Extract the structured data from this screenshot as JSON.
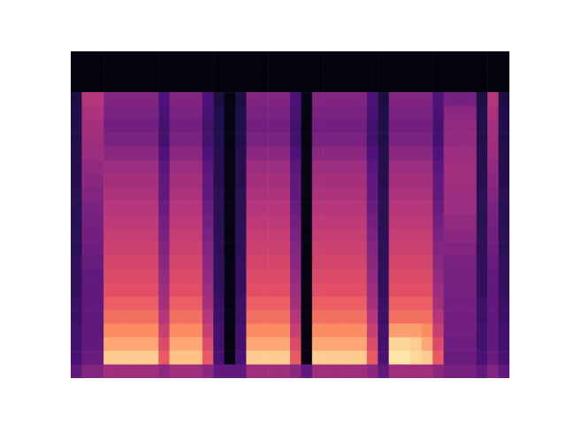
{
  "chart_data": {
    "type": "heatmap",
    "color": "magma",
    "tick_labels": false,
    "zlim": [
      0,
      100
    ],
    "values": [
      [
        2,
        2,
        2,
        2,
        2,
        2,
        2,
        2,
        2,
        2,
        2,
        2,
        2,
        2,
        2,
        2,
        2,
        2,
        2,
        2,
        2,
        2,
        2,
        2,
        2,
        2,
        2,
        2,
        2,
        2,
        2,
        2,
        2,
        2,
        2,
        2,
        2,
        2,
        2,
        2
      ],
      [
        2,
        2,
        2,
        2,
        2,
        2,
        2,
        2,
        2,
        2,
        2,
        2,
        2,
        2,
        2,
        2,
        2,
        2,
        2,
        2,
        2,
        2,
        2,
        2,
        2,
        2,
        2,
        2,
        2,
        2,
        2,
        2,
        2,
        2,
        2,
        2,
        2,
        2,
        2,
        2
      ],
      [
        2,
        2,
        2,
        2,
        2,
        2,
        2,
        2,
        2,
        2,
        2,
        2,
        2,
        2,
        2,
        2,
        2,
        2,
        2,
        2,
        2,
        2,
        2,
        2,
        2,
        2,
        2,
        2,
        2,
        2,
        2,
        2,
        2,
        2,
        2,
        2,
        2,
        2,
        2,
        2
      ],
      [
        12,
        50,
        50,
        38,
        38,
        38,
        38,
        38,
        25,
        38,
        38,
        38,
        25,
        12,
        3,
        12,
        38,
        38,
        38,
        38,
        25,
        3,
        38,
        38,
        38,
        38,
        38,
        25,
        12,
        38,
        38,
        38,
        38,
        25,
        35,
        35,
        35,
        12,
        50,
        12
      ],
      [
        14,
        48,
        48,
        36,
        36,
        36,
        36,
        36,
        24,
        36,
        36,
        36,
        24,
        14,
        3,
        14,
        36,
        36,
        36,
        36,
        24,
        3,
        36,
        36,
        36,
        36,
        36,
        24,
        14,
        36,
        36,
        36,
        36,
        24,
        40,
        40,
        40,
        14,
        48,
        14
      ],
      [
        14,
        46,
        46,
        34,
        34,
        34,
        34,
        34,
        22,
        34,
        34,
        34,
        22,
        14,
        3,
        14,
        34,
        34,
        34,
        34,
        22,
        3,
        34,
        34,
        34,
        34,
        34,
        22,
        14,
        34,
        34,
        34,
        34,
        22,
        42,
        42,
        42,
        14,
        46,
        14
      ],
      [
        14,
        45,
        45,
        36,
        36,
        36,
        36,
        36,
        22,
        36,
        36,
        36,
        22,
        14,
        3,
        14,
        36,
        36,
        36,
        36,
        22,
        3,
        36,
        36,
        36,
        36,
        36,
        22,
        14,
        36,
        36,
        36,
        36,
        22,
        42,
        42,
        42,
        14,
        45,
        14
      ],
      [
        15,
        44,
        44,
        40,
        40,
        40,
        40,
        40,
        25,
        40,
        40,
        40,
        25,
        15,
        3,
        15,
        40,
        40,
        40,
        40,
        25,
        3,
        40,
        40,
        40,
        40,
        40,
        25,
        15,
        40,
        40,
        40,
        40,
        25,
        44,
        44,
        44,
        15,
        44,
        15
      ],
      [
        15,
        42,
        42,
        44,
        44,
        44,
        44,
        44,
        28,
        44,
        44,
        44,
        28,
        15,
        3,
        15,
        44,
        44,
        44,
        44,
        28,
        3,
        44,
        44,
        44,
        44,
        44,
        28,
        15,
        44,
        44,
        44,
        44,
        28,
        45,
        45,
        45,
        15,
        42,
        15
      ],
      [
        15,
        40,
        40,
        46,
        46,
        46,
        46,
        46,
        30,
        46,
        46,
        46,
        30,
        15,
        3,
        15,
        46,
        46,
        46,
        46,
        30,
        3,
        46,
        46,
        46,
        46,
        46,
        30,
        15,
        46,
        46,
        46,
        46,
        30,
        45,
        45,
        45,
        15,
        40,
        15
      ],
      [
        16,
        38,
        38,
        48,
        48,
        48,
        48,
        48,
        30,
        48,
        48,
        48,
        30,
        16,
        3,
        16,
        48,
        48,
        48,
        48,
        30,
        3,
        48,
        48,
        48,
        48,
        48,
        30,
        16,
        48,
        48,
        48,
        48,
        30,
        44,
        44,
        44,
        16,
        38,
        16
      ],
      [
        16,
        36,
        36,
        50,
        50,
        50,
        50,
        50,
        32,
        50,
        50,
        50,
        32,
        16,
        3,
        16,
        50,
        50,
        50,
        50,
        32,
        3,
        50,
        50,
        50,
        50,
        50,
        32,
        16,
        50,
        50,
        50,
        50,
        32,
        44,
        44,
        44,
        16,
        36,
        16
      ],
      [
        16,
        35,
        35,
        52,
        52,
        52,
        52,
        52,
        34,
        52,
        52,
        52,
        34,
        16,
        3,
        16,
        52,
        52,
        52,
        52,
        34,
        3,
        52,
        52,
        52,
        52,
        52,
        34,
        16,
        52,
        52,
        52,
        52,
        34,
        42,
        42,
        42,
        16,
        35,
        16
      ],
      [
        17,
        34,
        34,
        54,
        54,
        54,
        54,
        54,
        36,
        54,
        54,
        54,
        36,
        17,
        3,
        17,
        54,
        54,
        54,
        54,
        36,
        3,
        54,
        54,
        54,
        54,
        54,
        36,
        17,
        54,
        54,
        54,
        54,
        36,
        40,
        40,
        40,
        17,
        34,
        17
      ],
      [
        17,
        33,
        33,
        56,
        56,
        56,
        56,
        56,
        38,
        56,
        56,
        56,
        38,
        17,
        3,
        17,
        56,
        56,
        56,
        56,
        38,
        3,
        56,
        56,
        56,
        56,
        56,
        38,
        17,
        56,
        56,
        56,
        56,
        38,
        38,
        38,
        38,
        17,
        33,
        17
      ],
      [
        18,
        32,
        32,
        58,
        58,
        58,
        58,
        58,
        40,
        58,
        58,
        58,
        40,
        18,
        3,
        18,
        58,
        58,
        58,
        58,
        40,
        3,
        58,
        58,
        58,
        58,
        58,
        40,
        18,
        58,
        58,
        58,
        58,
        40,
        36,
        36,
        36,
        18,
        32,
        18
      ],
      [
        18,
        30,
        30,
        60,
        60,
        60,
        60,
        60,
        42,
        60,
        60,
        60,
        42,
        18,
        3,
        18,
        60,
        60,
        60,
        60,
        42,
        3,
        60,
        60,
        60,
        60,
        60,
        42,
        18,
        60,
        60,
        60,
        60,
        42,
        35,
        35,
        35,
        18,
        30,
        18
      ],
      [
        18,
        30,
        30,
        62,
        62,
        62,
        62,
        62,
        44,
        62,
        62,
        62,
        44,
        18,
        3,
        18,
        62,
        62,
        62,
        62,
        44,
        3,
        62,
        62,
        62,
        62,
        62,
        44,
        18,
        62,
        62,
        62,
        62,
        44,
        35,
        35,
        35,
        18,
        30,
        18
      ],
      [
        20,
        30,
        30,
        66,
        66,
        66,
        66,
        66,
        46,
        66,
        66,
        66,
        46,
        20,
        3,
        20,
        66,
        66,
        66,
        66,
        46,
        3,
        66,
        66,
        66,
        66,
        66,
        46,
        20,
        66,
        66,
        66,
        66,
        46,
        34,
        34,
        34,
        20,
        30,
        20
      ],
      [
        20,
        30,
        30,
        70,
        70,
        70,
        70,
        70,
        50,
        70,
        70,
        70,
        50,
        20,
        3,
        20,
        70,
        70,
        70,
        70,
        50,
        3,
        70,
        70,
        70,
        70,
        70,
        50,
        20,
        70,
        70,
        70,
        70,
        50,
        34,
        34,
        34,
        20,
        30,
        20
      ],
      [
        22,
        30,
        30,
        76,
        76,
        76,
        76,
        76,
        55,
        76,
        76,
        76,
        55,
        22,
        3,
        22,
        76,
        76,
        76,
        76,
        55,
        3,
        76,
        76,
        76,
        76,
        76,
        55,
        22,
        80,
        80,
        80,
        76,
        55,
        34,
        34,
        34,
        22,
        30,
        22
      ],
      [
        22,
        30,
        30,
        82,
        82,
        82,
        82,
        82,
        60,
        82,
        82,
        82,
        60,
        22,
        3,
        22,
        82,
        82,
        82,
        82,
        60,
        3,
        82,
        82,
        82,
        82,
        82,
        60,
        22,
        92,
        92,
        90,
        82,
        60,
        33,
        33,
        33,
        22,
        30,
        22
      ],
      [
        24,
        32,
        32,
        90,
        90,
        90,
        90,
        90,
        65,
        88,
        88,
        88,
        65,
        24,
        3,
        24,
        90,
        90,
        90,
        90,
        65,
        3,
        90,
        90,
        90,
        90,
        90,
        65,
        24,
        95,
        95,
        92,
        90,
        65,
        32,
        32,
        32,
        24,
        32,
        24
      ],
      [
        30,
        38,
        38,
        45,
        45,
        45,
        45,
        45,
        40,
        45,
        45,
        45,
        40,
        30,
        30,
        30,
        45,
        45,
        45,
        45,
        40,
        30,
        45,
        45,
        45,
        45,
        45,
        40,
        30,
        45,
        45,
        45,
        45,
        40,
        35,
        35,
        35,
        30,
        38,
        30
      ]
    ]
  }
}
